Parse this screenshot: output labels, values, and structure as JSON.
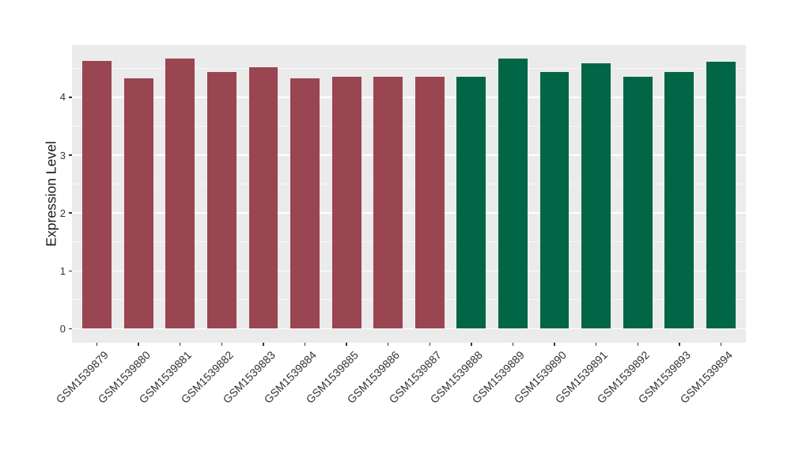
{
  "chart_data": {
    "type": "bar",
    "title": "",
    "ylabel": "Expression Level",
    "xlabel": "",
    "categories": [
      "GSM1539879",
      "GSM1539880",
      "GSM1539881",
      "GSM1539882",
      "GSM1539883",
      "GSM1539884",
      "GSM1539885",
      "GSM1539886",
      "GSM1539887",
      "GSM1539888",
      "GSM1539889",
      "GSM1539890",
      "GSM1539891",
      "GSM1539892",
      "GSM1539893",
      "GSM1539894"
    ],
    "values": [
      4.62,
      4.32,
      4.67,
      4.43,
      4.52,
      4.33,
      4.36,
      4.35,
      4.35,
      4.36,
      4.67,
      4.44,
      4.58,
      4.36,
      4.44,
      4.61
    ],
    "groups": [
      "g1",
      "g1",
      "g1",
      "g1",
      "g1",
      "g1",
      "g1",
      "g1",
      "g1",
      "g2",
      "g2",
      "g2",
      "g2",
      "g2",
      "g2",
      "g2"
    ],
    "group_colors": {
      "g1": "#9A4552",
      "g2": "#016645"
    },
    "yticks": [
      0,
      1,
      2,
      3,
      4
    ],
    "yticks_minor": [
      0.5,
      1.5,
      2.5,
      3.5,
      4.5
    ],
    "ylim": [
      0,
      4.9
    ],
    "x_tick_angle": 45,
    "grid": true,
    "legend": "none",
    "colors": {
      "panel_bg": "#EBEBEB",
      "grid": "#FFFFFF",
      "tick": "#333333",
      "tick_text": "#333333",
      "axis_title": "#1A1A1A"
    }
  }
}
